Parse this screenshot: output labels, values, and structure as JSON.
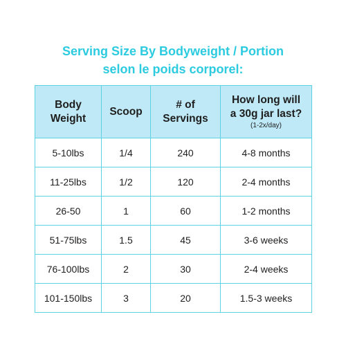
{
  "title": {
    "line1": "Serving Size By Bodyweight / Portion",
    "line2": "selon le poids corporel:"
  },
  "table": {
    "headers": [
      {
        "line1": "Body",
        "line2": "Weight"
      },
      {
        "line1": "Scoop"
      },
      {
        "line1": "# of",
        "line2": "Servings"
      },
      {
        "line1": "How long will",
        "line2": "a 30g jar last?",
        "note": "(1-2x/day)"
      }
    ],
    "rows": [
      [
        "5-10lbs",
        "1/4",
        "240",
        "4-8 months"
      ],
      [
        "11-25lbs",
        "1/2",
        "120",
        "2-4 months"
      ],
      [
        "26-50",
        "1",
        "60",
        "1-2 months"
      ],
      [
        "51-75lbs",
        "1.5",
        "45",
        "3-6 weeks"
      ],
      [
        "76-100lbs",
        "2",
        "30",
        "2-4 weeks"
      ],
      [
        "101-150lbs",
        "3",
        "20",
        "1.5-3 weeks"
      ]
    ]
  },
  "colors": {
    "title": "#2ccbe0",
    "header_bg": "#bfe9f6",
    "border": "#5cd2e2",
    "text": "#1e1e1e"
  }
}
